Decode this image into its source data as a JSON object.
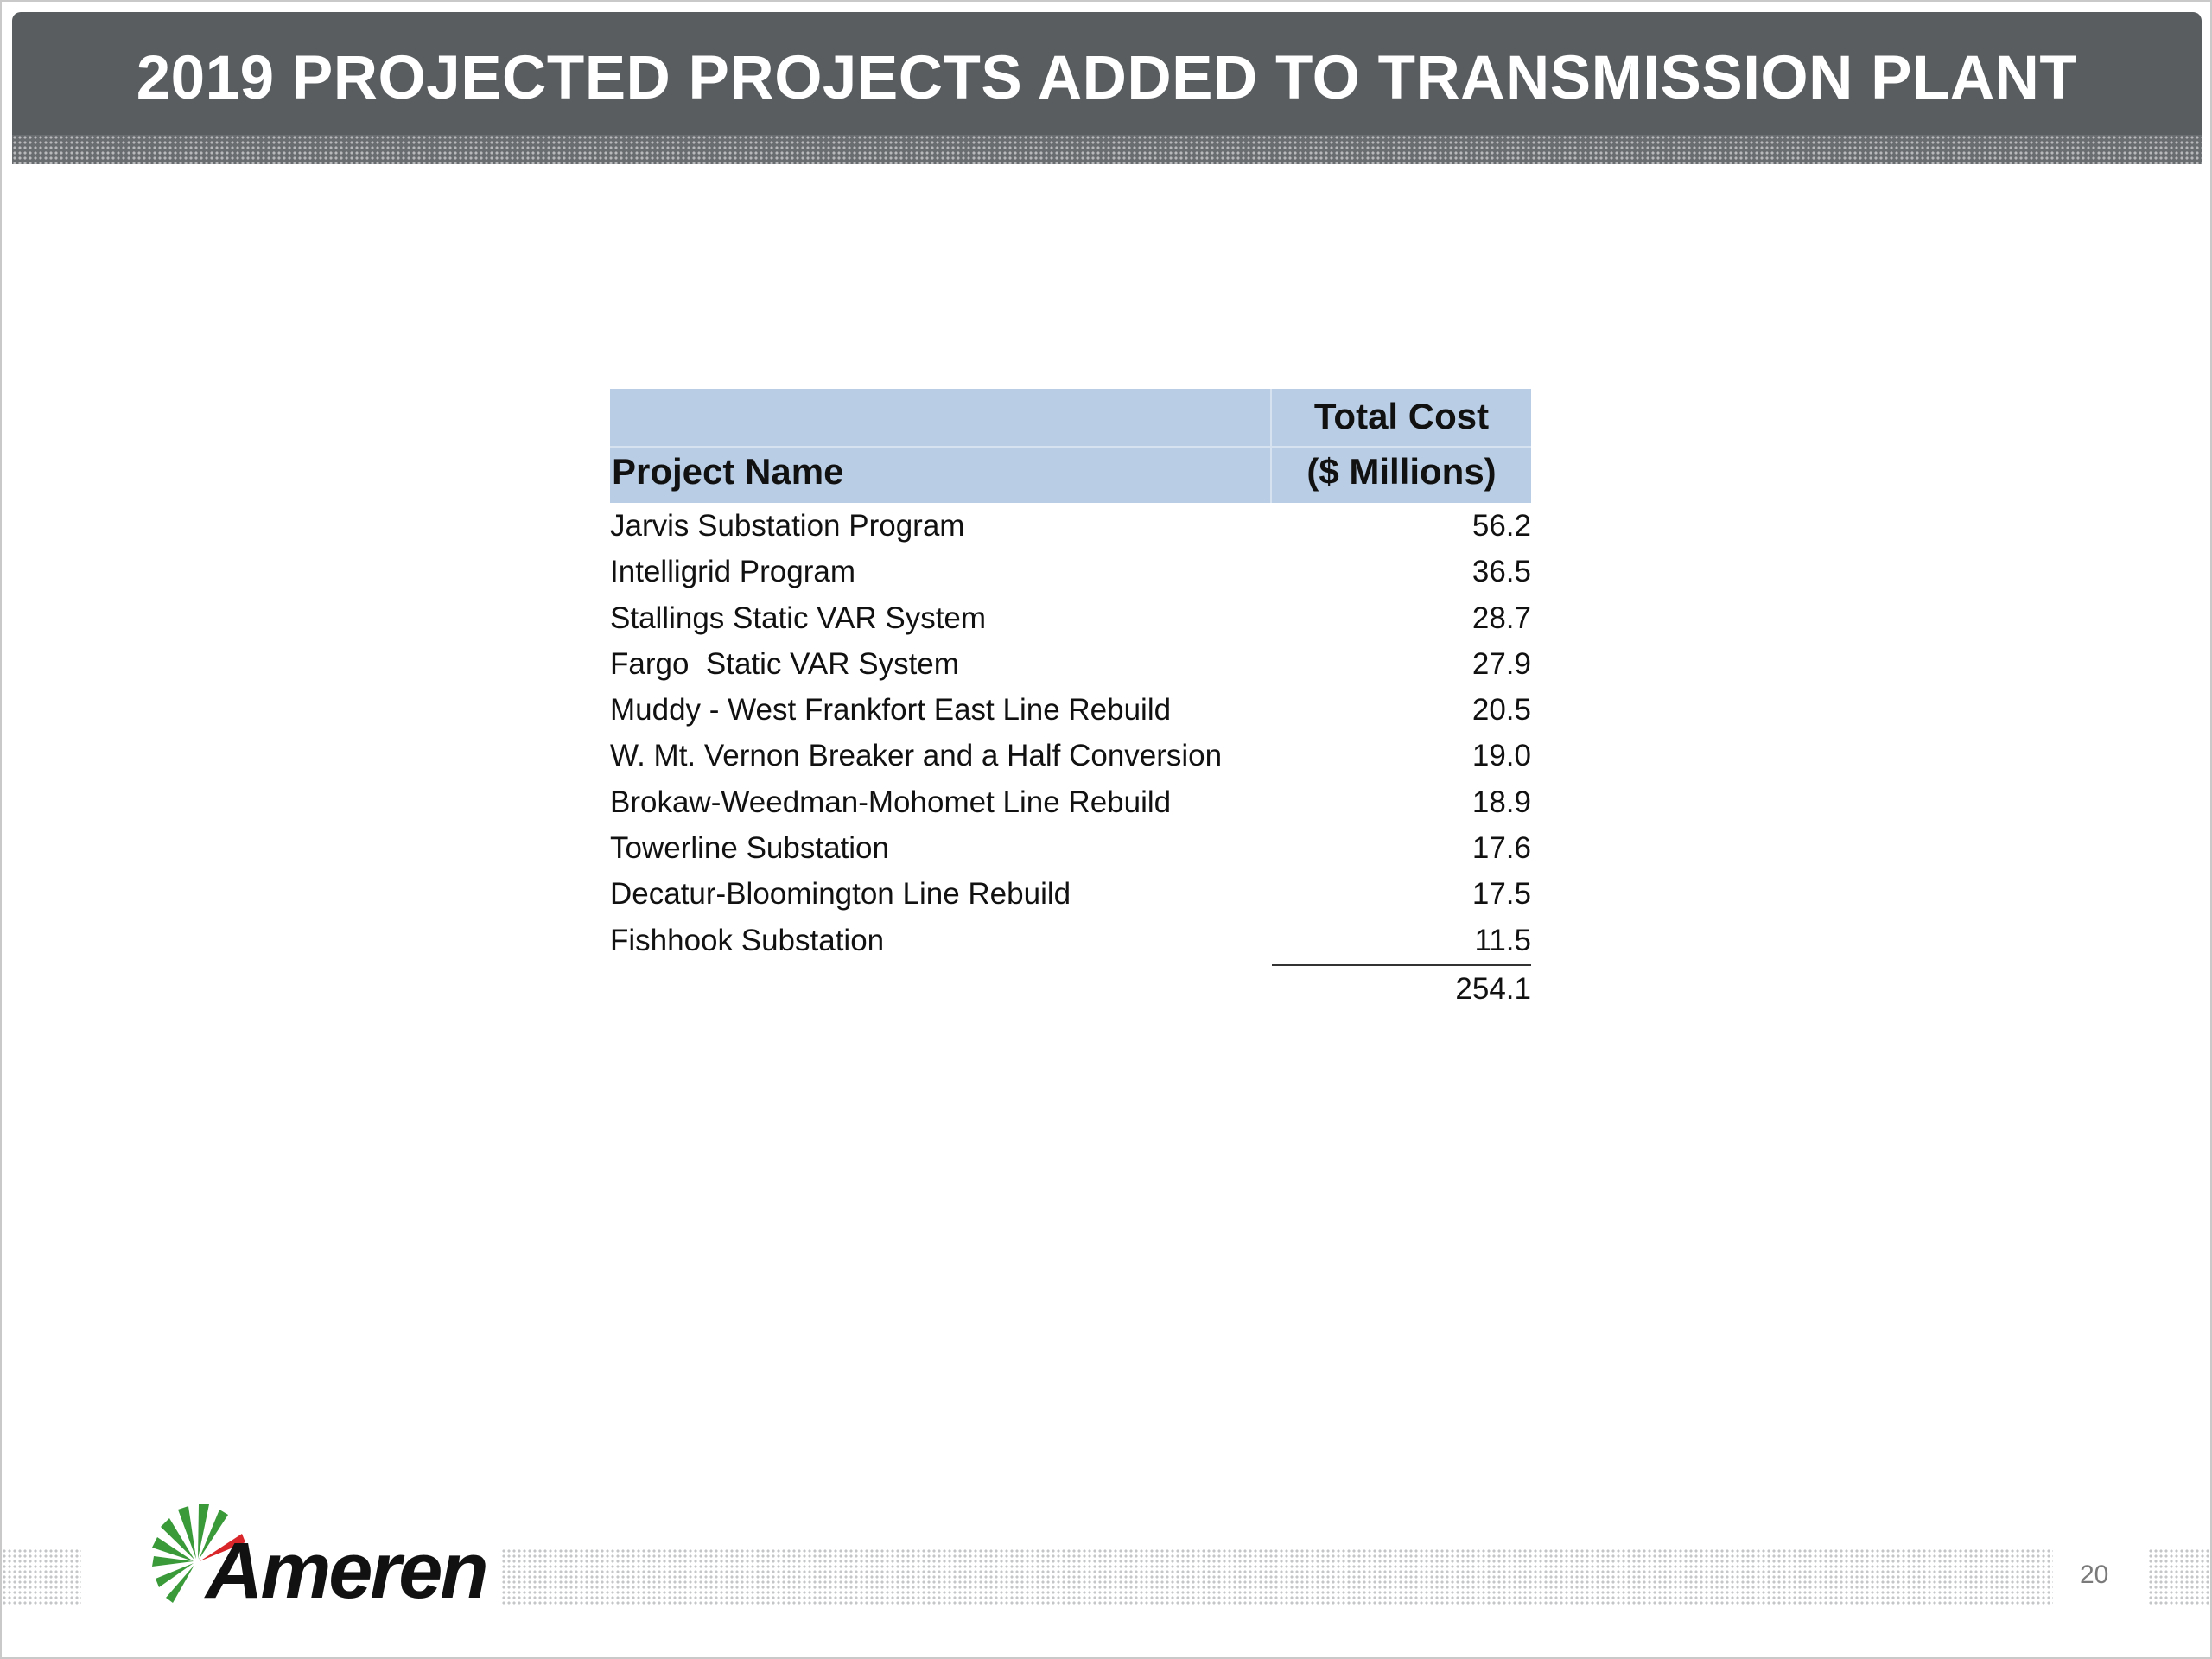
{
  "title": "2019 PROJECTED PROJECTS ADDED TO TRANSMISSION PLANT",
  "table": {
    "header_project": "Project Name",
    "header_cost_line1": "Total Cost",
    "header_cost_line2": "($ Millions)",
    "rows": [
      {
        "name": "Jarvis Substation Program",
        "cost": "56.2"
      },
      {
        "name": "Intelligrid Program",
        "cost": "36.5"
      },
      {
        "name": "Stallings Static VAR System",
        "cost": "28.7"
      },
      {
        "name": "Fargo  Static VAR System",
        "cost": "27.9"
      },
      {
        "name": "Muddy - West Frankfort East Line Rebuild",
        "cost": "20.5"
      },
      {
        "name": "W. Mt. Vernon Breaker and a Half Conversion",
        "cost": "19.0"
      },
      {
        "name": "Brokaw-Weedman-Mohomet Line Rebuild",
        "cost": "18.9"
      },
      {
        "name": "Towerline Substation",
        "cost": "17.6"
      },
      {
        "name": "Decatur-Bloomington Line Rebuild",
        "cost": "17.5"
      },
      {
        "name": "Fishhook Substation",
        "cost": "11.5"
      }
    ],
    "total": "254.1"
  },
  "footer": {
    "logo_text": "Ameren",
    "page_number": "20"
  },
  "colors": {
    "title_bar": "#5a5d60",
    "table_header": "#b9cde4",
    "logo_green": "#3a9a3a",
    "logo_red": "#d9262b"
  }
}
